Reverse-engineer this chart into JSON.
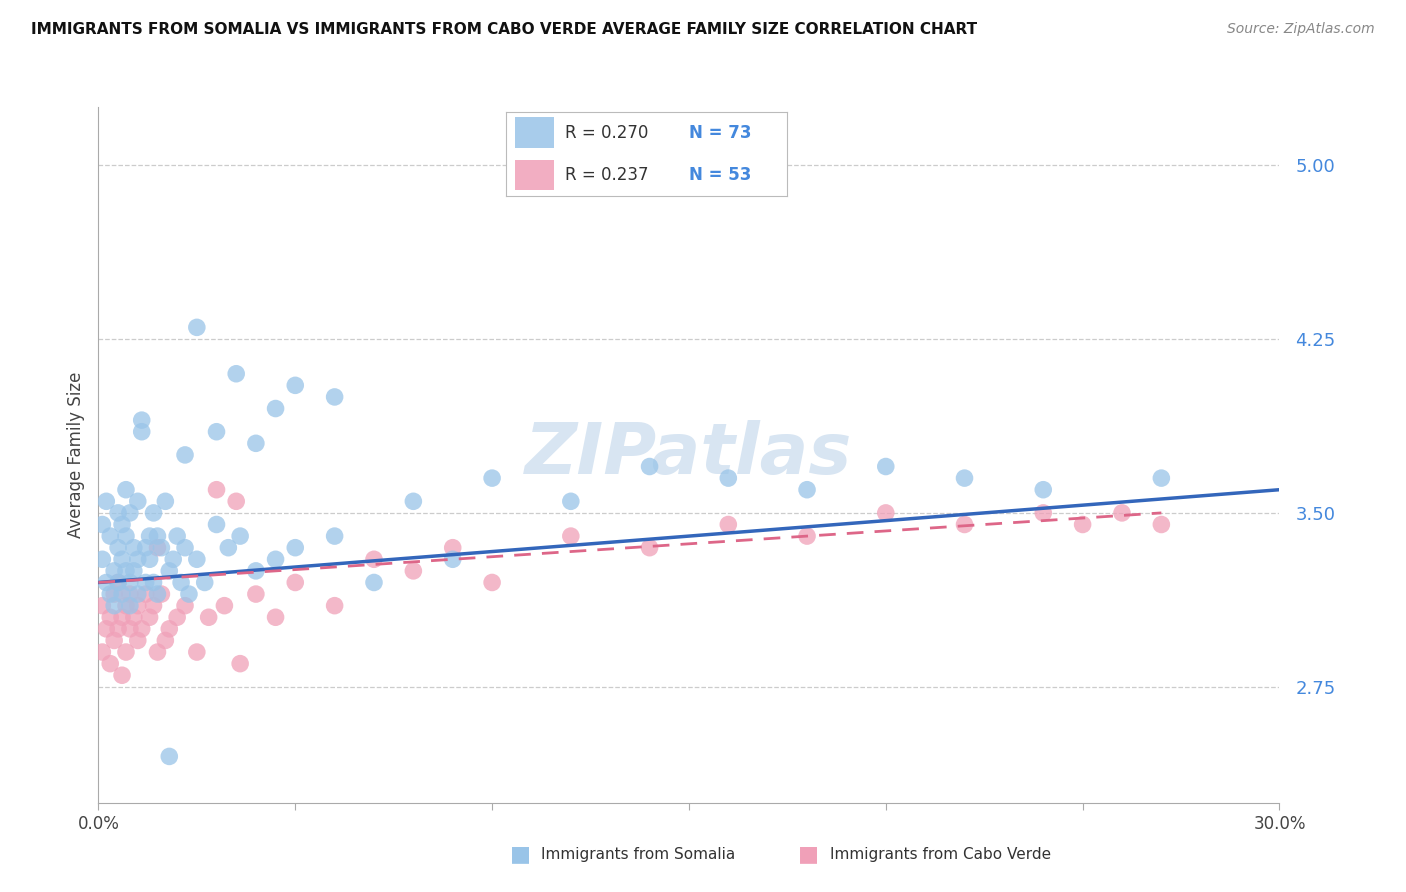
{
  "title": "IMMIGRANTS FROM SOMALIA VS IMMIGRANTS FROM CABO VERDE AVERAGE FAMILY SIZE CORRELATION CHART",
  "source": "Source: ZipAtlas.com",
  "ylabel": "Average Family Size",
  "x_min": 0.0,
  "x_max": 0.3,
  "y_min": 2.25,
  "y_max": 5.25,
  "yticks": [
    2.75,
    3.5,
    4.25,
    5.0
  ],
  "xtick_positions": [
    0.0,
    0.05,
    0.1,
    0.15,
    0.2,
    0.25,
    0.3
  ],
  "xtick_labels": [
    "0.0%",
    "",
    "",
    "",
    "",
    "",
    "30.0%"
  ],
  "color_somalia": "#99c4e8",
  "color_caboverde": "#f0a0b8",
  "color_somalia_line": "#3366bb",
  "color_caboverde_line": "#dd6688",
  "somalia_label": "Immigrants from Somalia",
  "caboverde_label": "Immigrants from Cabo Verde",
  "watermark": "ZIPatlas",
  "somalia_x": [
    0.001,
    0.001,
    0.002,
    0.002,
    0.003,
    0.003,
    0.004,
    0.004,
    0.005,
    0.005,
    0.005,
    0.006,
    0.006,
    0.006,
    0.007,
    0.007,
    0.007,
    0.008,
    0.008,
    0.008,
    0.009,
    0.009,
    0.01,
    0.01,
    0.01,
    0.011,
    0.011,
    0.012,
    0.012,
    0.013,
    0.013,
    0.014,
    0.014,
    0.015,
    0.015,
    0.016,
    0.017,
    0.018,
    0.019,
    0.02,
    0.021,
    0.022,
    0.023,
    0.025,
    0.027,
    0.03,
    0.033,
    0.036,
    0.04,
    0.045,
    0.05,
    0.06,
    0.07,
    0.08,
    0.09,
    0.1,
    0.12,
    0.14,
    0.16,
    0.18,
    0.2,
    0.22,
    0.24,
    0.27,
    0.025,
    0.03,
    0.035,
    0.04,
    0.045,
    0.05,
    0.06,
    0.022,
    0.018
  ],
  "somalia_y": [
    3.3,
    3.45,
    3.2,
    3.55,
    3.15,
    3.4,
    3.25,
    3.1,
    3.35,
    3.5,
    3.2,
    3.45,
    3.3,
    3.15,
    3.6,
    3.25,
    3.4,
    3.2,
    3.1,
    3.5,
    3.35,
    3.25,
    3.55,
    3.3,
    3.15,
    3.9,
    3.85,
    3.35,
    3.2,
    3.4,
    3.3,
    3.5,
    3.2,
    3.4,
    3.15,
    3.35,
    3.55,
    3.25,
    3.3,
    3.4,
    3.2,
    3.35,
    3.15,
    3.3,
    3.2,
    3.45,
    3.35,
    3.4,
    3.25,
    3.3,
    3.35,
    3.4,
    3.2,
    3.55,
    3.3,
    3.65,
    3.55,
    3.7,
    3.65,
    3.6,
    3.7,
    3.65,
    3.6,
    3.65,
    4.3,
    3.85,
    4.1,
    3.8,
    3.95,
    4.05,
    4.0,
    3.75,
    2.45
  ],
  "caboverde_x": [
    0.001,
    0.001,
    0.002,
    0.003,
    0.003,
    0.004,
    0.004,
    0.005,
    0.005,
    0.006,
    0.006,
    0.007,
    0.007,
    0.008,
    0.008,
    0.009,
    0.01,
    0.01,
    0.011,
    0.012,
    0.013,
    0.014,
    0.015,
    0.016,
    0.017,
    0.018,
    0.02,
    0.022,
    0.025,
    0.028,
    0.032,
    0.036,
    0.04,
    0.045,
    0.05,
    0.06,
    0.07,
    0.08,
    0.09,
    0.1,
    0.12,
    0.14,
    0.16,
    0.18,
    0.2,
    0.22,
    0.24,
    0.25,
    0.26,
    0.27,
    0.03,
    0.035,
    0.015
  ],
  "caboverde_y": [
    3.1,
    2.9,
    3.0,
    3.05,
    2.85,
    3.15,
    2.95,
    3.0,
    3.2,
    3.05,
    2.8,
    3.1,
    2.9,
    3.0,
    3.15,
    3.05,
    2.95,
    3.1,
    3.0,
    3.15,
    3.05,
    3.1,
    2.9,
    3.15,
    2.95,
    3.0,
    3.05,
    3.1,
    2.9,
    3.05,
    3.1,
    2.85,
    3.15,
    3.05,
    3.2,
    3.1,
    3.3,
    3.25,
    3.35,
    3.2,
    3.4,
    3.35,
    3.45,
    3.4,
    3.5,
    3.45,
    3.5,
    3.45,
    3.5,
    3.45,
    3.6,
    3.55,
    3.35
  ]
}
